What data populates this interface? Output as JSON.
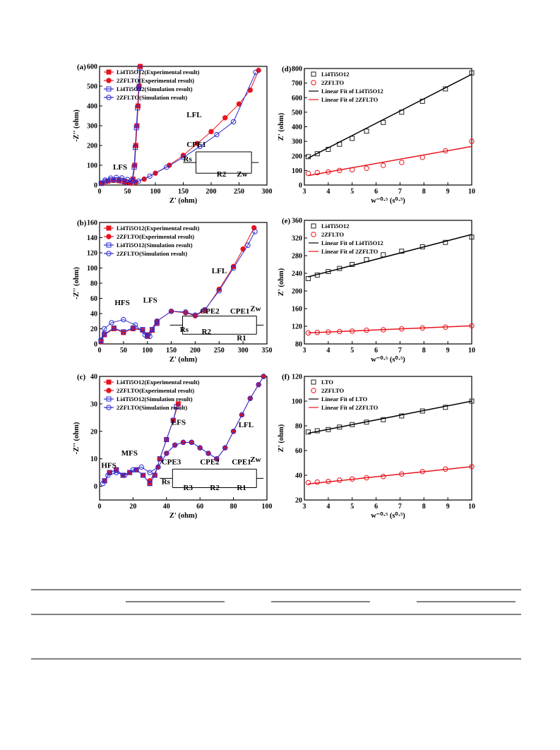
{
  "chart_data": [
    {
      "type": "nyquist",
      "panel": "(a)",
      "x_label": "Z' (ohm)",
      "y_label": "-Z'' (ohm)",
      "xlim": [
        0,
        300
      ],
      "xticks": [
        0,
        50,
        100,
        150,
        200,
        250,
        300
      ],
      "ylim": [
        0,
        600
      ],
      "yticks": [
        0,
        100,
        200,
        300,
        400,
        500,
        600
      ],
      "annotations": [
        "LFS",
        "LFL",
        "CPE1",
        "Rs",
        "R2",
        "Zw"
      ],
      "series": [
        {
          "name": "Li4Ti5O12(Experimental result)",
          "color": "#e8141c",
          "marker": "square",
          "filled": true,
          "x": [
            5,
            15,
            25,
            35,
            45,
            55,
            60,
            63,
            65,
            67,
            69,
            71,
            73
          ],
          "values": [
            10,
            20,
            24,
            22,
            16,
            10,
            30,
            100,
            200,
            300,
            400,
            500,
            600
          ]
        },
        {
          "name": "2ZFLTO(Experimental result)",
          "color": "#e8141c",
          "marker": "circle",
          "filled": true,
          "x": [
            5,
            15,
            25,
            35,
            45,
            55,
            65,
            80,
            100,
            125,
            150,
            175,
            200,
            225,
            250,
            270,
            285
          ],
          "values": [
            10,
            20,
            24,
            22,
            16,
            10,
            15,
            30,
            60,
            100,
            150,
            210,
            270,
            340,
            410,
            480,
            580
          ]
        },
        {
          "name": "Li4Ti5O12(Simulation result)",
          "color": "#2a2ad0",
          "marker": "square",
          "filled": false,
          "x": [
            3,
            10,
            20,
            30,
            40,
            50,
            58,
            62,
            64,
            66,
            68,
            70,
            72
          ],
          "values": [
            8,
            18,
            26,
            26,
            20,
            12,
            22,
            90,
            190,
            290,
            390,
            490,
            590
          ]
        },
        {
          "name": "2ZFLTO(Simulation result)",
          "color": "#2a2ad0",
          "marker": "circle",
          "filled": false,
          "x": [
            3,
            10,
            20,
            30,
            40,
            50,
            60,
            70,
            90,
            120,
            150,
            180,
            210,
            240,
            280
          ],
          "values": [
            10,
            25,
            35,
            38,
            36,
            28,
            18,
            20,
            45,
            90,
            140,
            195,
            255,
            320,
            570
          ]
        }
      ]
    },
    {
      "type": "fit",
      "panel": "(d)",
      "x_label": "w⁻⁰·⁵ (s⁰·⁵)",
      "y_label": "Z' (ohm)",
      "xlim": [
        3,
        10
      ],
      "xticks": [
        3,
        4,
        5,
        6,
        7,
        8,
        9,
        10
      ],
      "ylim": [
        0,
        800
      ],
      "yticks": [
        0,
        100,
        200,
        300,
        400,
        500,
        600,
        700,
        800
      ],
      "annotations": [],
      "series": [
        {
          "name": "Li4Ti5O12",
          "color": "#222222",
          "marker": "square",
          "filled": false,
          "x": [
            3.16,
            3.54,
            4,
            4.47,
            5,
            5.6,
            6.3,
            7.07,
            7.94,
            8.9,
            10
          ],
          "values": [
            195,
            215,
            245,
            280,
            320,
            370,
            430,
            500,
            575,
            660,
            770
          ]
        },
        {
          "name": "2ZFLTO",
          "color": "#e8141c",
          "marker": "circle",
          "filled": false,
          "x": [
            3.16,
            3.54,
            4,
            4.47,
            5,
            5.6,
            6.3,
            7.07,
            7.94,
            8.9,
            10
          ],
          "values": [
            80,
            85,
            90,
            100,
            105,
            115,
            135,
            155,
            190,
            235,
            300
          ]
        },
        {
          "name": "Linear Fit of Li4Ti5O12",
          "color": "#000000",
          "marker": "none",
          "x": [
            3.16,
            10
          ],
          "values": [
            185,
            760
          ]
        },
        {
          "name": "Linear Fit of 2ZFLTO",
          "color": "#e8141c",
          "marker": "none",
          "x": [
            3.16,
            10
          ],
          "values": [
            65,
            265
          ]
        }
      ]
    },
    {
      "type": "nyquist",
      "panel": "(b)",
      "x_label": "Z' (ohm)",
      "y_label": "-Z'' (ohm)",
      "xlim": [
        0,
        350
      ],
      "xticks": [
        0,
        50,
        100,
        150,
        200,
        250,
        300,
        350
      ],
      "ylim": [
        0,
        160
      ],
      "yticks": [
        0,
        20,
        40,
        60,
        80,
        100,
        120,
        140,
        160
      ],
      "annotations": [
        "HFS",
        "LFS",
        "LFL",
        "CPE2",
        "CPE1",
        "Zw",
        "Rs",
        "R2",
        "R1"
      ],
      "series": [
        {
          "name": "Li4Ti5O12(Experimental result)",
          "color": "#e8141c",
          "marker": "square",
          "filled": true,
          "x": [
            3,
            10,
            30,
            50,
            70,
            90,
            100,
            110,
            120
          ],
          "values": [
            3,
            12,
            20,
            15,
            20,
            18,
            10,
            18,
            28
          ]
        },
        {
          "name": "2ZFLTO(Experimental result)",
          "color": "#e8141c",
          "marker": "circle",
          "filled": true,
          "x": [
            100,
            120,
            150,
            180,
            200,
            220,
            250,
            280,
            300,
            323
          ],
          "values": [
            12,
            30,
            43,
            41,
            37,
            44,
            72,
            102,
            125,
            153
          ]
        },
        {
          "name": "Li4Ti5O12(Simulation result)",
          "color": "#2a2ad0",
          "marker": "square",
          "filled": false,
          "x": [
            3,
            10,
            30,
            50,
            70,
            90,
            100,
            110,
            120
          ],
          "values": [
            4,
            13,
            21,
            16,
            21,
            19,
            11,
            19,
            27
          ]
        },
        {
          "name": "2ZFLTO(Simulation result)",
          "color": "#2a2ad0",
          "marker": "circle",
          "filled": false,
          "x": [
            3,
            10,
            25,
            50,
            75,
            95,
            105,
            120,
            150,
            180,
            200,
            220,
            250,
            280,
            310,
            325
          ],
          "values": [
            5,
            20,
            28,
            32,
            25,
            12,
            10,
            30,
            43,
            42,
            38,
            45,
            70,
            100,
            130,
            148
          ]
        }
      ]
    },
    {
      "type": "fit",
      "panel": "(e)",
      "x_label": "w⁻⁰·⁵ (s⁰·⁵)",
      "y_label": "Z' (ohm)",
      "xlim": [
        3,
        10
      ],
      "xticks": [
        3,
        4,
        5,
        6,
        7,
        8,
        9,
        10
      ],
      "ylim": [
        80,
        360
      ],
      "yticks": [
        80,
        120,
        160,
        200,
        240,
        280,
        320,
        360
      ],
      "annotations": [],
      "series": [
        {
          "name": "Li4Ti5O12",
          "color": "#222222",
          "marker": "square",
          "filled": false,
          "x": [
            3.16,
            3.54,
            4,
            4.47,
            5,
            5.6,
            6.3,
            7.07,
            7.94,
            8.9,
            10
          ],
          "values": [
            228,
            236,
            244,
            251,
            260,
            271,
            282,
            290,
            300,
            310,
            322
          ]
        },
        {
          "name": "2ZFLTO",
          "color": "#e8141c",
          "marker": "circle",
          "filled": false,
          "x": [
            3.16,
            3.54,
            4,
            4.47,
            5,
            5.6,
            6.3,
            7.07,
            7.94,
            8.9,
            10
          ],
          "values": [
            105,
            106,
            107,
            108,
            109,
            111,
            112,
            114,
            116,
            118,
            121
          ]
        },
        {
          "name": "Linear Fit of Li4Ti5O12",
          "color": "#000000",
          "marker": "none",
          "x": [
            3.16,
            10
          ],
          "values": [
            232,
            328
          ]
        },
        {
          "name": "Linear Fit of 2ZFLTO",
          "color": "#e8141c",
          "marker": "none",
          "x": [
            3.16,
            10
          ],
          "values": [
            105,
            121
          ]
        }
      ]
    },
    {
      "type": "nyquist",
      "panel": "(c)",
      "x_label": "Z' (ohm)",
      "y_label": "-Z'' (ohm)",
      "xlim": [
        0,
        100
      ],
      "xticks": [
        0,
        20,
        40,
        60,
        80,
        100
      ],
      "ylim": [
        -5,
        40
      ],
      "yticks": [
        0,
        10,
        20,
        30,
        40
      ],
      "annotations": [
        "HFS",
        "MFS",
        "LFS",
        "LFL",
        "CPE3",
        "CPE2",
        "CPE1",
        "Zw",
        "Rs",
        "R3",
        "R2",
        "R1"
      ],
      "series": [
        {
          "name": "Li4Ti5O12(Experimental result)",
          "color": "#e8141c",
          "marker": "square",
          "filled": true,
          "x": [
            3,
            6,
            10,
            14,
            18,
            22,
            26,
            30,
            33,
            36,
            40,
            44,
            47
          ],
          "values": [
            2,
            5,
            6,
            4,
            5,
            6,
            4,
            1,
            4,
            10,
            17,
            24,
            30
          ]
        },
        {
          "name": "2ZFLTO(Experimental result)",
          "color": "#e8141c",
          "marker": "circle",
          "filled": true,
          "x": [
            30,
            35,
            40,
            45,
            50,
            55,
            60,
            65,
            70,
            75,
            80,
            85,
            90,
            95,
            98
          ],
          "values": [
            2,
            7,
            12,
            15,
            16,
            16,
            14,
            12,
            10,
            14,
            20,
            26,
            32,
            37,
            40
          ]
        },
        {
          "name": "Li4Ti5O12(Simulation result)",
          "color": "#2a2ad0",
          "marker": "square",
          "filled": false,
          "x": [
            3,
            6,
            10,
            14,
            18,
            22,
            26,
            30,
            33,
            36,
            40,
            44,
            46
          ],
          "values": [
            2,
            5,
            6,
            4,
            5,
            6,
            4,
            1,
            4,
            10,
            17,
            24,
            29
          ]
        },
        {
          "name": "2ZFLTO(Simulation result)",
          "color": "#2a2ad0",
          "marker": "circle",
          "filled": false,
          "x": [
            2,
            5,
            10,
            15,
            20,
            25,
            30,
            35,
            40,
            45,
            50,
            55,
            60,
            65,
            70,
            75,
            80,
            85,
            90,
            95,
            98
          ],
          "values": [
            1,
            4,
            5,
            4,
            6,
            7,
            5,
            7,
            12,
            15,
            16,
            16,
            14,
            12,
            10,
            14,
            20,
            26,
            32,
            37,
            40
          ]
        }
      ]
    },
    {
      "type": "fit",
      "panel": "(f)",
      "x_label": "w⁻⁰·⁵ (s⁰·⁵)",
      "y_label": "Z' (ohm)",
      "xlim": [
        3,
        10
      ],
      "xticks": [
        3,
        4,
        5,
        6,
        7,
        8,
        9,
        10
      ],
      "ylim": [
        20,
        120
      ],
      "yticks": [
        20,
        40,
        60,
        80,
        100,
        120
      ],
      "annotations": [],
      "series": [
        {
          "name": "LTO",
          "color": "#222222",
          "marker": "square",
          "filled": false,
          "x": [
            3.16,
            3.54,
            4,
            4.47,
            5,
            5.6,
            6.3,
            7.07,
            7.94,
            8.9,
            10
          ],
          "values": [
            75,
            76,
            77,
            79,
            81,
            83,
            85,
            88,
            92,
            95,
            100
          ]
        },
        {
          "name": "2ZFLTO",
          "color": "#e8141c",
          "marker": "circle",
          "filled": false,
          "x": [
            3.16,
            3.54,
            4,
            4.47,
            5,
            5.6,
            6.3,
            7.07,
            7.94,
            8.9,
            10
          ],
          "values": [
            34,
            34.5,
            35,
            36,
            37,
            38,
            39,
            41,
            43,
            45,
            47
          ]
        },
        {
          "name": "Linear Fit of LTO",
          "color": "#000000",
          "marker": "none",
          "x": [
            3.16,
            10
          ],
          "values": [
            74,
            100
          ]
        },
        {
          "name": "Linear Fit of 2ZFLTO",
          "color": "#e8141c",
          "marker": "none",
          "x": [
            3.16,
            10
          ],
          "values": [
            33,
            47
          ]
        }
      ]
    }
  ]
}
